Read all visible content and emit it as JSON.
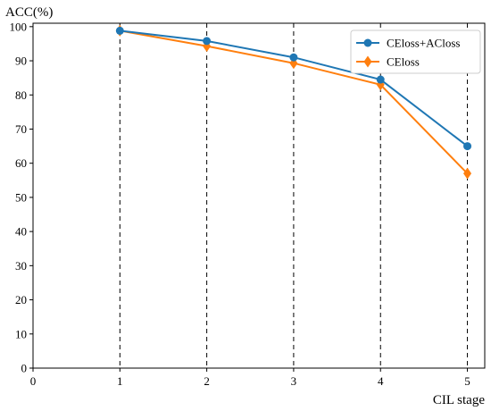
{
  "chart_data": {
    "type": "line",
    "ylabel": "ACC(%)",
    "xlabel": "CIL stage",
    "x": [
      1,
      2,
      3,
      4,
      5
    ],
    "xlim": [
      0,
      5.2
    ],
    "ylim": [
      0,
      101
    ],
    "xticks": [
      0,
      1,
      2,
      3,
      4,
      5
    ],
    "yticks": [
      0,
      10,
      20,
      30,
      40,
      50,
      60,
      70,
      80,
      90,
      100
    ],
    "grid": "vertical dashed lines at x = 1..5",
    "legend_position": "top-right",
    "series": [
      {
        "name": "CEloss+ACloss",
        "values": [
          98.8,
          95.8,
          91.0,
          84.5,
          65.0
        ],
        "color": "#1f77b4",
        "marker": "circle"
      },
      {
        "name": "CEloss",
        "values": [
          98.8,
          94.3,
          89.3,
          83.0,
          57.0
        ],
        "color": "#ff7f0e",
        "marker": "diamond"
      }
    ]
  }
}
